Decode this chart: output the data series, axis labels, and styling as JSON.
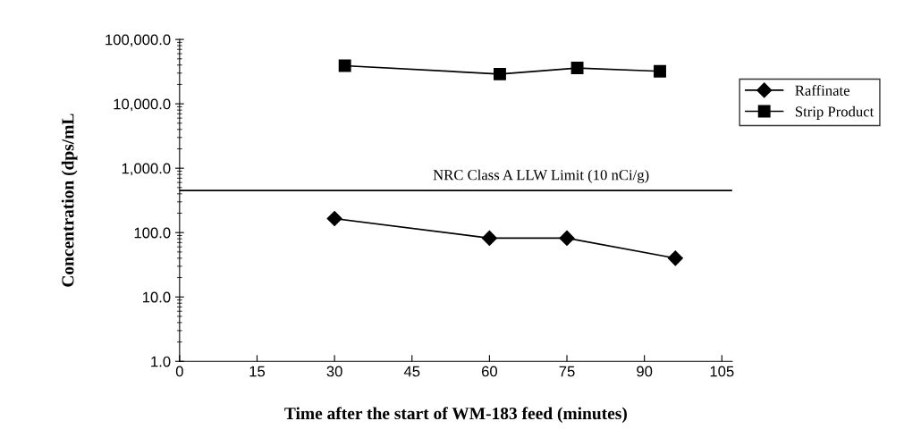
{
  "chart_data": {
    "type": "line",
    "xlabel": "Time after the start of WM-183 feed (minutes)",
    "ylabel": "Concentration (dps/mL",
    "log": "y",
    "xlim": [
      0,
      107
    ],
    "xticks": [
      0,
      15,
      30,
      45,
      60,
      75,
      90,
      105
    ],
    "ylim": [
      1,
      100000
    ],
    "yticks": [
      {
        "value": 1,
        "label": "1.0"
      },
      {
        "value": 10,
        "label": "10.0"
      },
      {
        "value": 100,
        "label": "100.0"
      },
      {
        "value": 1000,
        "label": "1,000.0"
      },
      {
        "value": 10000,
        "label": "10,000.0"
      },
      {
        "value": 100000,
        "label": "100,000.0"
      }
    ],
    "grid": false,
    "legend": "top right",
    "ref_lines": [
      {
        "axis": "y",
        "value": 450,
        "label": "NRC Class A LLW Limit (10 nCi/g)",
        "color": "#000000",
        "line_style": "solid"
      }
    ],
    "series": [
      {
        "name": "Raffinate",
        "color": "#000000",
        "marker": "diamond",
        "x": [
          30,
          60,
          75,
          96
        ],
        "values": [
          165,
          82,
          82,
          40
        ]
      },
      {
        "name": "Strip Product",
        "color": "#000000",
        "marker": "square",
        "x": [
          32,
          62,
          77,
          93
        ],
        "values": [
          39000,
          29000,
          36000,
          32000
        ]
      }
    ]
  }
}
